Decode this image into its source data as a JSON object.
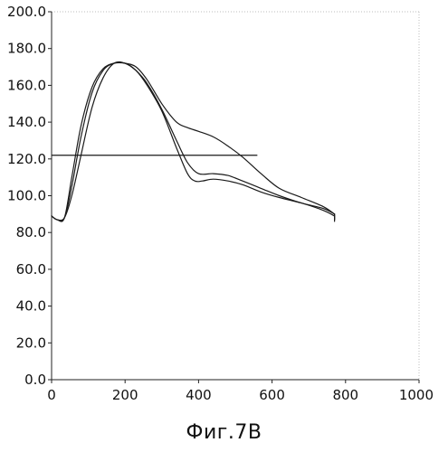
{
  "caption": "Фиг.7В",
  "chart_data": {
    "type": "line",
    "title": "",
    "xlabel": "",
    "ylabel": "",
    "xlim": [
      0,
      1000
    ],
    "ylim": [
      0,
      200
    ],
    "x_ticks": [
      0,
      200,
      400,
      600,
      800,
      1000
    ],
    "y_ticks": [
      0,
      20,
      40,
      60,
      80,
      100,
      120,
      140,
      160,
      180,
      200
    ],
    "x_tick_labels": [
      "0",
      "200",
      "400",
      "600",
      "800",
      "1000"
    ],
    "y_tick_labels": [
      "0.0",
      "20.0",
      "40.0",
      "60.0",
      "80.0",
      "100.0",
      "120.0",
      "140.0",
      "160.0",
      "180.0",
      "200.0"
    ],
    "grid": false,
    "legend": "none",
    "series": [
      {
        "x": [
          0,
          15,
          35,
          55,
          80,
          110,
          140,
          170,
          200,
          230,
          260,
          300,
          340,
          370,
          390,
          410,
          440,
          480,
          520,
          570,
          620,
          680,
          740,
          770
        ],
        "y": [
          89,
          87,
          88,
          100,
          122,
          148,
          164,
          172,
          172,
          168,
          160,
          146,
          126,
          112,
          108,
          108,
          109,
          108,
          106,
          102,
          99,
          96,
          92,
          89
        ]
      },
      {
        "x": [
          0,
          15,
          35,
          55,
          80,
          110,
          140,
          170,
          200,
          230,
          260,
          300,
          340,
          370,
          400,
          440,
          480,
          520,
          570,
          620,
          680,
          740,
          770
        ],
        "y": [
          89,
          87,
          88,
          105,
          132,
          156,
          168,
          172,
          172,
          168,
          161,
          147,
          130,
          118,
          112,
          112,
          111,
          108,
          104,
          100,
          96,
          93,
          90
        ]
      },
      {
        "x": [
          0,
          15,
          35,
          55,
          80,
          110,
          140,
          170,
          200,
          230,
          260,
          300,
          340,
          370,
          400,
          440,
          480,
          520,
          570,
          620,
          680,
          740,
          770
        ],
        "y": [
          89,
          87,
          88,
          110,
          138,
          159,
          169,
          172,
          172,
          170,
          163,
          150,
          140,
          137,
          135,
          132,
          127,
          121,
          112,
          104,
          99,
          94,
          90
        ]
      }
    ],
    "reference_line": {
      "y": 122,
      "x_start": 0,
      "x_end": 560
    }
  }
}
